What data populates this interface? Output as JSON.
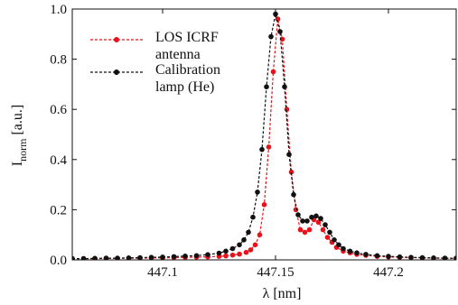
{
  "chart_data": {
    "type": "line",
    "xlabel": "λ [nm]",
    "ylabel_main": "I",
    "ylabel_sub": "norm",
    "ylabel_unit": " [a.u.]",
    "xlim": [
      447.06,
      447.23
    ],
    "ylim": [
      0,
      1.0
    ],
    "xticks": [
      447.1,
      447.15,
      447.2
    ],
    "xtick_labels": [
      "447.1",
      "447.15",
      "447.2"
    ],
    "yticks": [
      0,
      0.2,
      0.4,
      0.6,
      0.8,
      1.0
    ],
    "ytick_labels": [
      "0.0",
      "0.2",
      "0.4",
      "0.6",
      "0.8",
      "1.0"
    ],
    "grid": false,
    "legend_placement": "top-left",
    "series": [
      {
        "name": "LOS ICRF antenna",
        "legend_lines": [
          "LOS ICRF",
          "antenna"
        ],
        "color": "#e8131a",
        "x": [
          447.06,
          447.065,
          447.07,
          447.075,
          447.08,
          447.085,
          447.09,
          447.095,
          447.1,
          447.105,
          447.11,
          447.115,
          447.12,
          447.125,
          447.128,
          447.131,
          447.134,
          447.137,
          447.139,
          447.141,
          447.143,
          447.145,
          447.147,
          447.149,
          447.151,
          447.153,
          447.155,
          447.157,
          447.159,
          447.161,
          447.163,
          447.165,
          447.167,
          447.169,
          447.171,
          447.173,
          447.175,
          447.177,
          447.18,
          447.183,
          447.186,
          447.19,
          447.195,
          447.2,
          447.205,
          447.21,
          447.215,
          447.22,
          447.225,
          447.23
        ],
        "y": [
          0.005,
          0.005,
          0.005,
          0.006,
          0.006,
          0.007,
          0.007,
          0.008,
          0.008,
          0.009,
          0.01,
          0.011,
          0.012,
          0.014,
          0.016,
          0.019,
          0.023,
          0.03,
          0.04,
          0.06,
          0.1,
          0.22,
          0.45,
          0.75,
          0.96,
          0.88,
          0.6,
          0.35,
          0.2,
          0.12,
          0.11,
          0.12,
          0.16,
          0.15,
          0.12,
          0.09,
          0.07,
          0.05,
          0.035,
          0.028,
          0.022,
          0.018,
          0.014,
          0.012,
          0.01,
          0.009,
          0.008,
          0.007,
          0.006,
          0.006
        ]
      },
      {
        "name": "Calibration lamp (He)",
        "legend_lines": [
          "Calibration",
          "lamp (He)"
        ],
        "color": "#111111",
        "x": [
          447.06,
          447.065,
          447.07,
          447.075,
          447.08,
          447.085,
          447.09,
          447.095,
          447.1,
          447.105,
          447.11,
          447.115,
          447.12,
          447.125,
          447.128,
          447.131,
          447.134,
          447.136,
          447.138,
          447.14,
          447.142,
          447.144,
          447.146,
          447.148,
          447.15,
          447.152,
          447.154,
          447.156,
          447.158,
          447.16,
          447.162,
          447.164,
          447.166,
          447.168,
          447.17,
          447.172,
          447.174,
          447.176,
          447.178,
          447.18,
          447.183,
          447.186,
          447.19,
          447.195,
          447.2,
          447.205,
          447.21,
          447.215,
          447.22,
          447.225,
          447.23
        ],
        "y": [
          0.005,
          0.005,
          0.006,
          0.007,
          0.007,
          0.008,
          0.009,
          0.01,
          0.011,
          0.013,
          0.015,
          0.017,
          0.021,
          0.027,
          0.035,
          0.045,
          0.06,
          0.08,
          0.11,
          0.17,
          0.27,
          0.44,
          0.69,
          0.89,
          0.98,
          0.91,
          0.69,
          0.42,
          0.26,
          0.18,
          0.155,
          0.155,
          0.17,
          0.175,
          0.165,
          0.14,
          0.11,
          0.08,
          0.06,
          0.045,
          0.035,
          0.028,
          0.022,
          0.017,
          0.014,
          0.012,
          0.01,
          0.009,
          0.008,
          0.007,
          0.007
        ]
      }
    ]
  }
}
